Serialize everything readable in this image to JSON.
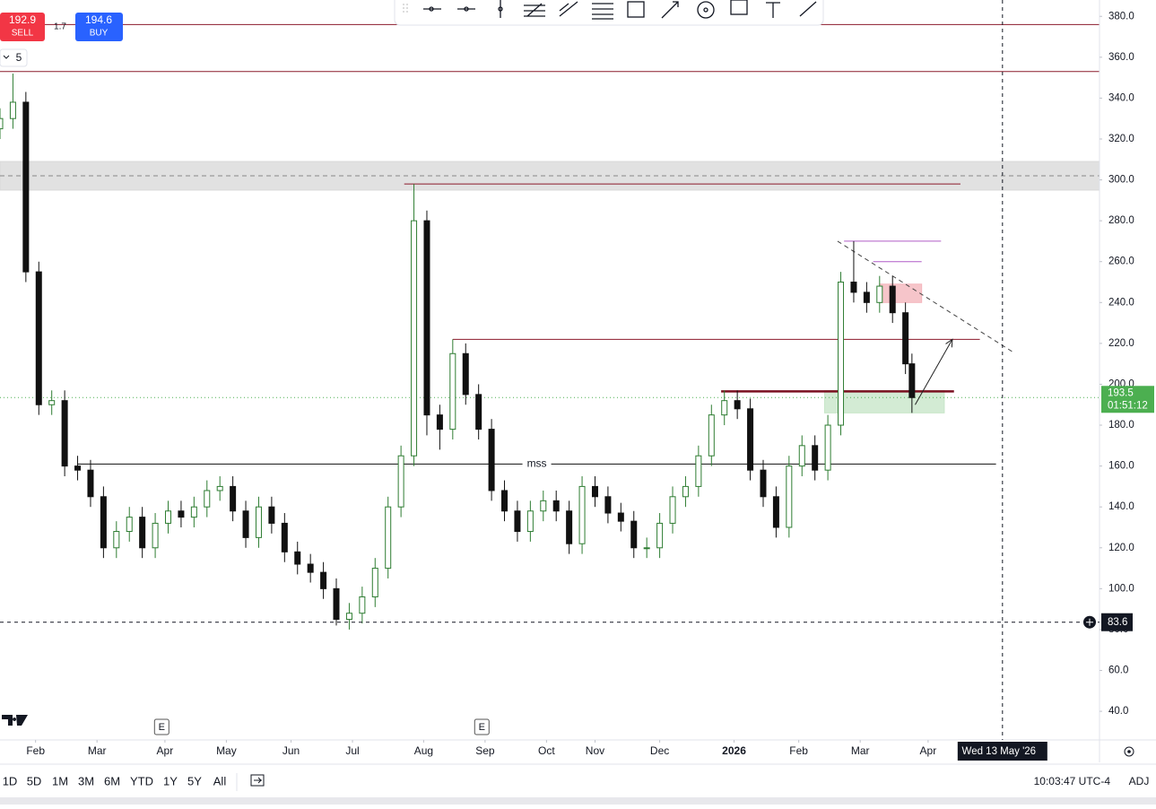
{
  "header": {
    "sell_price": 192.9,
    "sell_label": "SELL",
    "spread": 1.7,
    "buy_price": 194.6,
    "buy_label": "BUY",
    "indicator_count": 5
  },
  "chart_data": {
    "type": "candlestick",
    "x": [
      0,
      4,
      8,
      12,
      16,
      20,
      24,
      28,
      32,
      36,
      40,
      44,
      48,
      52,
      56,
      60,
      64,
      68,
      72,
      76,
      80,
      84,
      88,
      92,
      96,
      100,
      104,
      108,
      112,
      116,
      120,
      124,
      128,
      132,
      136,
      140,
      144,
      148,
      152,
      156,
      160,
      164,
      168,
      172,
      176,
      180,
      184,
      188,
      192,
      196,
      200,
      204,
      208,
      212,
      216,
      220,
      224,
      228,
      232,
      236,
      240,
      244,
      248,
      252,
      256,
      260,
      264,
      268,
      272,
      276,
      280,
      282
    ],
    "xlim": [
      0,
      340
    ],
    "xticks": [
      {
        "value": 11,
        "label": "Feb"
      },
      {
        "value": 30,
        "label": "Mar"
      },
      {
        "value": 51,
        "label": "Apr"
      },
      {
        "value": 70,
        "label": "May"
      },
      {
        "value": 90,
        "label": "Jun"
      },
      {
        "value": 109,
        "label": "Jul"
      },
      {
        "value": 131,
        "label": "Aug"
      },
      {
        "value": 150,
        "label": "Sep"
      },
      {
        "value": 169,
        "label": "Oct"
      },
      {
        "value": 184,
        "label": "Nov"
      },
      {
        "value": 204,
        "label": "Dec"
      },
      {
        "value": 227,
        "label": "2026"
      },
      {
        "value": 247,
        "label": "Feb"
      },
      {
        "value": 266,
        "label": "Mar"
      },
      {
        "value": 287,
        "label": "Apr"
      }
    ],
    "ylim": [
      26,
      388
    ],
    "yticks": [
      {
        "value": 40,
        "label": "40.0"
      },
      {
        "value": 60,
        "label": "60.0"
      },
      {
        "value": 80,
        "label": "80.0"
      },
      {
        "value": 100,
        "label": "100.0"
      },
      {
        "value": 120,
        "label": "120.0"
      },
      {
        "value": 140,
        "label": "140.0"
      },
      {
        "value": 160,
        "label": "160.0"
      },
      {
        "value": 180,
        "label": "180.0"
      },
      {
        "value": 200,
        "label": "200.0"
      },
      {
        "value": 220,
        "label": "220.0"
      },
      {
        "value": 240,
        "label": "240.0"
      },
      {
        "value": 260,
        "label": "260.0"
      },
      {
        "value": 280,
        "label": "280.0"
      },
      {
        "value": 300,
        "label": "300.0"
      },
      {
        "value": 320,
        "label": "320.0"
      },
      {
        "value": 340,
        "label": "340.0"
      },
      {
        "value": 360,
        "label": "360.0"
      },
      {
        "value": 380,
        "label": "380.0"
      }
    ],
    "grid": false,
    "series": [
      {
        "up_color": "#2e7d32",
        "down_color": "#111111",
        "open": [
          325,
          330,
          338,
          255,
          190,
          192,
          160,
          158,
          145,
          120,
          128,
          135,
          120,
          132,
          138,
          135,
          140,
          148,
          150,
          138,
          125,
          140,
          132,
          118,
          112,
          108,
          100,
          85,
          88,
          96,
          110,
          140,
          165,
          280,
          185,
          178,
          215,
          195,
          178,
          148,
          138,
          128,
          138,
          143,
          138,
          122,
          150,
          145,
          137,
          133,
          120,
          120,
          132,
          145,
          150,
          165,
          185,
          192,
          188,
          158,
          145,
          130,
          160,
          170,
          158,
          180,
          250,
          245,
          240,
          248,
          235,
          210
        ],
        "high": [
          335,
          352,
          343,
          260,
          197,
          197,
          165,
          163,
          150,
          133,
          140,
          140,
          137,
          143,
          143,
          145,
          153,
          155,
          155,
          143,
          145,
          145,
          137,
          123,
          117,
          113,
          105,
          93,
          101,
          115,
          145,
          170,
          298,
          285,
          190,
          222,
          220,
          200,
          183,
          153,
          143,
          143,
          148,
          148,
          143,
          155,
          155,
          150,
          142,
          138,
          125,
          137,
          150,
          155,
          170,
          190,
          197,
          197,
          193,
          163,
          150,
          165,
          175,
          175,
          185,
          255,
          270,
          250,
          253,
          253,
          240,
          215
        ],
        "low": [
          320,
          325,
          250,
          185,
          185,
          155,
          153,
          140,
          115,
          115,
          123,
          115,
          115,
          127,
          130,
          130,
          135,
          143,
          133,
          120,
          120,
          127,
          113,
          107,
          103,
          95,
          82,
          80,
          83,
          91,
          105,
          135,
          160,
          175,
          168,
          173,
          190,
          173,
          143,
          133,
          123,
          123,
          133,
          133,
          117,
          117,
          140,
          132,
          128,
          115,
          115,
          115,
          127,
          140,
          145,
          160,
          180,
          183,
          153,
          140,
          125,
          125,
          155,
          153,
          153,
          175,
          240,
          235,
          235,
          230,
          205,
          186
        ],
        "close": [
          330,
          338,
          255,
          190,
          192,
          160,
          158,
          145,
          120,
          128,
          135,
          120,
          132,
          138,
          135,
          140,
          148,
          150,
          138,
          125,
          140,
          132,
          118,
          112,
          108,
          100,
          85,
          88,
          96,
          110,
          140,
          165,
          280,
          185,
          178,
          215,
          195,
          178,
          148,
          138,
          128,
          138,
          143,
          138,
          122,
          150,
          145,
          137,
          133,
          120,
          120,
          132,
          145,
          150,
          165,
          185,
          192,
          188,
          158,
          145,
          130,
          160,
          170,
          158,
          180,
          250,
          245,
          240,
          248,
          235,
          210,
          193.5
        ]
      }
    ],
    "last_price": 193.5,
    "last_price_color": "#4caf50",
    "countdown": "01:51:12",
    "crosshair": {
      "x": 310,
      "price": 83.6,
      "date_label": "Wed 13 May '26"
    },
    "earnings_markers": [
      {
        "x": 50,
        "label": "E"
      },
      {
        "x": 149,
        "label": "E"
      }
    ],
    "annotations": {
      "zones": [
        {
          "low": 295,
          "high": 309,
          "x": [
            0,
            340
          ],
          "color": "#d9d9d9"
        },
        {
          "low": 240,
          "high": 249,
          "x": [
            272,
            285
          ],
          "color": "#f4b6bd"
        },
        {
          "low": 186,
          "high": 197,
          "x": [
            255,
            292
          ],
          "color": "#c8e6c9"
        }
      ],
      "hlines": [
        {
          "price": 376,
          "x": [
            0,
            340
          ],
          "color": "#8b1a2b"
        },
        {
          "price": 353,
          "x": [
            0,
            340
          ],
          "color": "#8b1a2b"
        },
        {
          "price": 302,
          "x": [
            0,
            340
          ],
          "color": "#888888",
          "dashed": true
        },
        {
          "price": 298,
          "x": [
            125,
            297
          ],
          "color": "#8b1a2b"
        },
        {
          "price": 222,
          "x": [
            140,
            303
          ],
          "color": "#8b1a2b"
        },
        {
          "price": 196.5,
          "x": [
            223,
            295
          ],
          "color": "#7a1020",
          "width": 2.5
        },
        {
          "price": 161,
          "x": [
            24,
            308
          ],
          "color": "#111111",
          "label": "mss"
        },
        {
          "price": 270,
          "x": [
            261,
            291
          ],
          "color": "#b05cc8"
        },
        {
          "price": 260,
          "x": [
            270,
            285
          ],
          "color": "#b05cc8"
        }
      ],
      "trendline": {
        "from": [
          259,
          270
        ],
        "to": [
          313,
          216
        ],
        "color": "#444444"
      },
      "arrow": {
        "from": [
          283,
          190
        ],
        "to": [
          294.5,
          222
        ],
        "color": "#222222"
      }
    }
  },
  "bottom_bar": {
    "ranges": [
      "1D",
      "5D",
      "1M",
      "3M",
      "6M",
      "YTD",
      "1Y",
      "5Y",
      "All"
    ],
    "clock": "10:03:47 UTC-4",
    "adj": "ADJ"
  }
}
